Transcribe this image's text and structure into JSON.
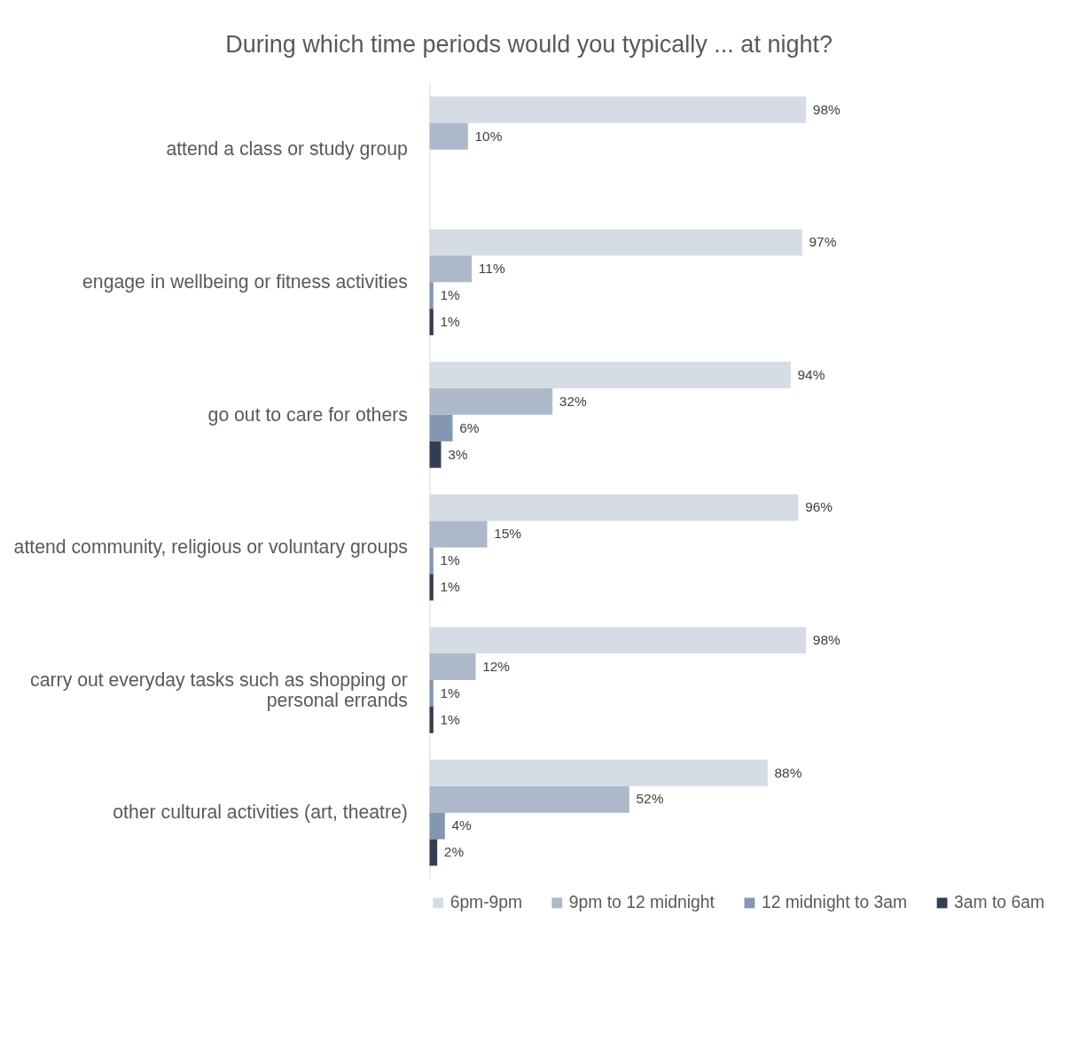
{
  "chart_data": {
    "type": "bar",
    "orientation": "horizontal",
    "title": "During which time periods would you typically ... at night?",
    "categories": [
      "attend a class or study group",
      "engage in wellbeing or fitness activities",
      "go out to care for others",
      "attend community, religious or voluntary groups",
      "carry out everyday tasks such as shopping or personal errands",
      "other cultural activities (art, theatre)"
    ],
    "series": [
      {
        "name": "6pm-9pm",
        "color": "#d6dce4",
        "values": [
          98,
          97,
          94,
          96,
          98,
          88
        ],
        "value_labels": [
          "98%",
          "97%",
          "94%",
          "96%",
          "98%",
          "88%"
        ]
      },
      {
        "name": "9pm to 12 midnight",
        "color": "#adb9ca",
        "values": [
          10,
          11,
          32,
          15,
          12,
          52
        ],
        "value_labels": [
          "10%",
          "11%",
          "32%",
          "15%",
          "12%",
          "52%"
        ]
      },
      {
        "name": "12 midnight to 3am",
        "color": "#8497b0",
        "values": [
          null,
          1,
          6,
          1,
          1,
          4
        ],
        "value_labels": [
          null,
          "1%",
          "6%",
          "1%",
          "1%",
          "4%"
        ]
      },
      {
        "name": "3am to 6am",
        "color": "#333f50",
        "values": [
          null,
          1,
          3,
          1,
          1,
          2
        ],
        "value_labels": [
          null,
          "1%",
          "3%",
          "1%",
          "1%",
          "2%"
        ]
      }
    ],
    "tick_labels": "y",
    "grid": false,
    "legend": "bottom"
  }
}
